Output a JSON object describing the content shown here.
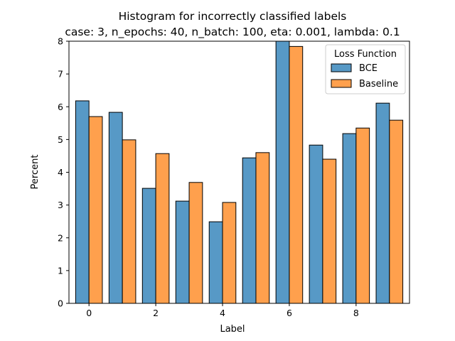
{
  "chart_data": {
    "type": "bar",
    "title": "Histogram for incorrectly classified labels",
    "subtitle": "case: 3, n_epochs: 40, n_batch: 100, eta: 0.001, lambda: 0.1",
    "xlabel": "Label",
    "ylabel": "Percent",
    "categories": [
      "0",
      "1",
      "2",
      "3",
      "4",
      "5",
      "6",
      "7",
      "8",
      "9"
    ],
    "x_ticks": [
      "0",
      "2",
      "4",
      "6",
      "8"
    ],
    "y_ticks": [
      "0",
      "1",
      "2",
      "3",
      "4",
      "5",
      "6",
      "7",
      "8"
    ],
    "xlim": [
      -0.6,
      9.6
    ],
    "ylim": [
      0,
      8
    ],
    "grid": false,
    "legend": {
      "title": "Loss Function",
      "placement": "top-right"
    },
    "series": [
      {
        "name": "BCE",
        "color": "#5799c6",
        "values": [
          6.18,
          5.83,
          3.51,
          3.12,
          2.49,
          4.44,
          8.02,
          4.83,
          5.18,
          6.11
        ]
      },
      {
        "name": "Baseline",
        "color": "#ffa04d",
        "values": [
          5.7,
          4.99,
          4.57,
          3.69,
          3.08,
          4.6,
          7.84,
          4.4,
          5.35,
          5.59
        ]
      }
    ]
  }
}
